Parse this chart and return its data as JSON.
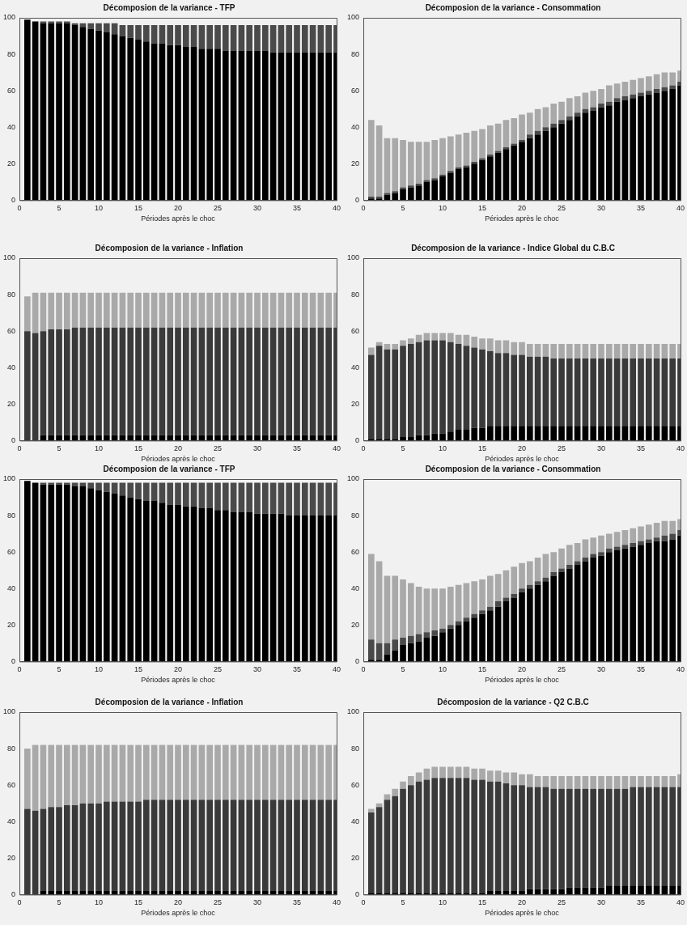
{
  "chart_data": [
    {
      "type": "bar",
      "stacked": true,
      "title": "Décomposion de la variance - TFP",
      "xlabel": "Périodes après le choc",
      "x": [
        1,
        2,
        3,
        4,
        5,
        6,
        7,
        8,
        9,
        10,
        11,
        12,
        13,
        14,
        15,
        16,
        17,
        18,
        19,
        20,
        21,
        22,
        23,
        24,
        25,
        26,
        27,
        28,
        29,
        30,
        31,
        32,
        33,
        34,
        35,
        36,
        37,
        38,
        39,
        40
      ],
      "xlim": [
        0,
        40
      ],
      "xticks": [
        0,
        5,
        10,
        15,
        20,
        25,
        30,
        35,
        40
      ],
      "ylim": [
        0,
        100
      ],
      "yticks": [
        0,
        20,
        40,
        60,
        80,
        100
      ],
      "series": [
        {
          "color": "#000000",
          "values": [
            99,
            98,
            97,
            97,
            97,
            97,
            96,
            95,
            94,
            93,
            92,
            91,
            90,
            89,
            88,
            87,
            86,
            86,
            85,
            85,
            84,
            84,
            83,
            83,
            83,
            82,
            82,
            82,
            82,
            82,
            82,
            81,
            81,
            81,
            81,
            81,
            81,
            81,
            81,
            81
          ]
        },
        {
          "color": "#4a4a4a",
          "values": [
            0,
            0,
            1,
            1,
            1,
            1,
            1,
            2,
            3,
            4,
            5,
            6,
            6,
            7,
            8,
            9,
            10,
            10,
            11,
            11,
            12,
            12,
            13,
            13,
            13,
            14,
            14,
            14,
            14,
            14,
            14,
            15,
            15,
            15,
            15,
            15,
            15,
            15,
            15,
            15
          ]
        }
      ]
    },
    {
      "type": "bar",
      "stacked": true,
      "title": "Décomposion de la variance - Consommation",
      "xlabel": "Périodes après le choc",
      "x": [
        1,
        2,
        3,
        4,
        5,
        6,
        7,
        8,
        9,
        10,
        11,
        12,
        13,
        14,
        15,
        16,
        17,
        18,
        19,
        20,
        21,
        22,
        23,
        24,
        25,
        26,
        27,
        28,
        29,
        30,
        31,
        32,
        33,
        34,
        35,
        36,
        37,
        38,
        39,
        40
      ],
      "xlim": [
        0,
        40
      ],
      "xticks": [
        0,
        5,
        10,
        15,
        20,
        25,
        30,
        35,
        40
      ],
      "ylim": [
        0,
        100
      ],
      "yticks": [
        0,
        20,
        40,
        60,
        80,
        100
      ],
      "series": [
        {
          "color": "#000000",
          "values": [
            1,
            1,
            3,
            4,
            6,
            7,
            8,
            10,
            11,
            13,
            15,
            17,
            18,
            20,
            22,
            24,
            26,
            28,
            30,
            32,
            34,
            36,
            38,
            40,
            42,
            44,
            46,
            48,
            49,
            51,
            52,
            54,
            55,
            56,
            57,
            58,
            59,
            60,
            61,
            63
          ]
        },
        {
          "color": "#4a4a4a",
          "values": [
            1,
            1,
            1,
            1,
            1,
            1,
            1,
            1,
            1,
            1,
            1,
            1,
            1,
            1,
            1,
            1,
            1,
            1,
            1,
            1,
            2,
            2,
            2,
            2,
            2,
            2,
            2,
            2,
            2,
            2,
            2,
            2,
            2,
            2,
            2,
            2,
            2,
            2,
            2,
            2
          ]
        },
        {
          "color": "#a9a9a9",
          "values": [
            42,
            39,
            30,
            29,
            26,
            24,
            23,
            21,
            21,
            20,
            19,
            18,
            18,
            17,
            16,
            16,
            15,
            15,
            14,
            14,
            12,
            12,
            11,
            11,
            10,
            10,
            9,
            9,
            9,
            8,
            9,
            8,
            8,
            8,
            8,
            8,
            8,
            8,
            7,
            6
          ]
        }
      ]
    },
    {
      "type": "bar",
      "stacked": true,
      "title": "Décomposion de la variance - Inflation",
      "xlabel": "Périodes après le choc",
      "x": [
        1,
        2,
        3,
        4,
        5,
        6,
        7,
        8,
        9,
        10,
        11,
        12,
        13,
        14,
        15,
        16,
        17,
        18,
        19,
        20,
        21,
        22,
        23,
        24,
        25,
        26,
        27,
        28,
        29,
        30,
        31,
        32,
        33,
        34,
        35,
        36,
        37,
        38,
        39,
        40
      ],
      "xlim": [
        0,
        40
      ],
      "xticks": [
        0,
        5,
        10,
        15,
        20,
        25,
        30,
        35,
        40
      ],
      "ylim": [
        0,
        100
      ],
      "yticks": [
        0,
        20,
        40,
        60,
        80,
        100
      ],
      "series": [
        {
          "color": "#000000",
          "values": [
            0,
            0,
            3,
            3,
            3,
            3,
            3,
            3,
            3,
            3,
            3,
            3,
            3,
            3,
            3,
            3,
            3,
            3,
            3,
            3,
            3,
            3,
            3,
            3,
            3,
            3,
            3,
            3,
            3,
            3,
            3,
            3,
            3,
            3,
            3,
            3,
            3,
            3,
            3,
            3
          ]
        },
        {
          "color": "#3a3a3a",
          "values": [
            60,
            59,
            57,
            58,
            58,
            58,
            59,
            59,
            59,
            59,
            59,
            59,
            59,
            59,
            59,
            59,
            59,
            59,
            59,
            59,
            59,
            59,
            59,
            59,
            59,
            59,
            59,
            59,
            59,
            59,
            59,
            59,
            59,
            59,
            59,
            59,
            59,
            59,
            59,
            59
          ]
        },
        {
          "color": "#a9a9a9",
          "values": [
            19,
            22,
            21,
            20,
            20,
            20,
            19,
            19,
            19,
            19,
            19,
            19,
            19,
            19,
            19,
            19,
            19,
            19,
            19,
            19,
            19,
            19,
            19,
            19,
            19,
            19,
            19,
            19,
            19,
            19,
            19,
            19,
            19,
            19,
            19,
            19,
            19,
            19,
            19,
            19
          ]
        }
      ]
    },
    {
      "type": "bar",
      "stacked": true,
      "title": "Décomposion de la variance - Indice Global du C.B.C",
      "xlabel": "Périodes après le choc",
      "x": [
        1,
        2,
        3,
        4,
        5,
        6,
        7,
        8,
        9,
        10,
        11,
        12,
        13,
        14,
        15,
        16,
        17,
        18,
        19,
        20,
        21,
        22,
        23,
        24,
        25,
        26,
        27,
        28,
        29,
        30,
        31,
        32,
        33,
        34,
        35,
        36,
        37,
        38,
        39,
        40
      ],
      "xlim": [
        0,
        40
      ],
      "xticks": [
        0,
        5,
        10,
        15,
        20,
        25,
        30,
        35,
        40
      ],
      "ylim": [
        0,
        100
      ],
      "yticks": [
        0,
        20,
        40,
        60,
        80,
        100
      ],
      "series": [
        {
          "color": "#000000",
          "values": [
            1,
            1,
            1,
            1,
            2,
            2,
            3,
            3,
            4,
            4,
            5,
            6,
            6,
            7,
            7,
            8,
            8,
            8,
            8,
            8,
            8,
            8,
            8,
            8,
            8,
            8,
            8,
            8,
            8,
            8,
            8,
            8,
            8,
            8,
            8,
            8,
            8,
            8,
            8,
            8
          ]
        },
        {
          "color": "#3a3a3a",
          "values": [
            46,
            51,
            49,
            49,
            50,
            51,
            51,
            52,
            51,
            51,
            49,
            47,
            46,
            44,
            43,
            41,
            40,
            40,
            39,
            39,
            38,
            38,
            38,
            37,
            37,
            37,
            37,
            37,
            37,
            37,
            37,
            37,
            37,
            37,
            37,
            37,
            37,
            37,
            37,
            37
          ]
        },
        {
          "color": "#a9a9a9",
          "values": [
            4,
            2,
            3,
            3,
            3,
            3,
            4,
            4,
            4,
            4,
            5,
            5,
            6,
            6,
            6,
            7,
            7,
            7,
            7,
            7,
            7,
            7,
            7,
            8,
            8,
            8,
            8,
            8,
            8,
            8,
            8,
            8,
            8,
            8,
            8,
            8,
            8,
            8,
            8,
            8
          ]
        }
      ]
    },
    {
      "type": "bar",
      "stacked": true,
      "title": "Décomposion de la variance - TFP",
      "xlabel": "Périodes après le choc",
      "x": [
        1,
        2,
        3,
        4,
        5,
        6,
        7,
        8,
        9,
        10,
        11,
        12,
        13,
        14,
        15,
        16,
        17,
        18,
        19,
        20,
        21,
        22,
        23,
        24,
        25,
        26,
        27,
        28,
        29,
        30,
        31,
        32,
        33,
        34,
        35,
        36,
        37,
        38,
        39,
        40
      ],
      "xlim": [
        0,
        40
      ],
      "xticks": [
        0,
        5,
        10,
        15,
        20,
        25,
        30,
        35,
        40
      ],
      "ylim": [
        0,
        100
      ],
      "yticks": [
        0,
        20,
        40,
        60,
        80,
        100
      ],
      "series": [
        {
          "color": "#000000",
          "values": [
            99,
            98,
            97,
            97,
            97,
            97,
            96,
            96,
            95,
            94,
            93,
            92,
            91,
            90,
            89,
            88,
            88,
            87,
            86,
            86,
            85,
            85,
            84,
            84,
            83,
            83,
            82,
            82,
            82,
            81,
            81,
            81,
            81,
            80,
            80,
            80,
            80,
            80,
            80,
            80
          ]
        },
        {
          "color": "#4a4a4a",
          "values": [
            0,
            0,
            1,
            1,
            1,
            1,
            2,
            2,
            3,
            4,
            5,
            6,
            7,
            8,
            9,
            10,
            10,
            11,
            12,
            12,
            13,
            13,
            14,
            14,
            15,
            15,
            16,
            16,
            16,
            17,
            17,
            17,
            17,
            18,
            18,
            18,
            18,
            18,
            18,
            18
          ]
        }
      ]
    },
    {
      "type": "bar",
      "stacked": true,
      "title": "Décomposion de la variance - Consommation",
      "xlabel": "Périodes après le choc",
      "x": [
        1,
        2,
        3,
        4,
        5,
        6,
        7,
        8,
        9,
        10,
        11,
        12,
        13,
        14,
        15,
        16,
        17,
        18,
        19,
        20,
        21,
        22,
        23,
        24,
        25,
        26,
        27,
        28,
        29,
        30,
        31,
        32,
        33,
        34,
        35,
        36,
        37,
        38,
        39,
        40
      ],
      "xlim": [
        0,
        40
      ],
      "xticks": [
        0,
        5,
        10,
        15,
        20,
        25,
        30,
        35,
        40
      ],
      "ylim": [
        0,
        100
      ],
      "yticks": [
        0,
        20,
        40,
        60,
        80,
        100
      ],
      "series": [
        {
          "color": "#000000",
          "values": [
            1,
            1,
            4,
            6,
            9,
            10,
            11,
            13,
            14,
            16,
            18,
            20,
            22,
            24,
            26,
            28,
            30,
            33,
            35,
            38,
            40,
            42,
            44,
            47,
            49,
            51,
            53,
            55,
            57,
            58,
            60,
            61,
            62,
            63,
            64,
            65,
            66,
            66,
            67,
            69
          ]
        },
        {
          "color": "#4a4a4a",
          "values": [
            11,
            9,
            6,
            6,
            4,
            4,
            4,
            3,
            3,
            2,
            2,
            2,
            2,
            2,
            2,
            2,
            3,
            2,
            2,
            2,
            2,
            2,
            2,
            2,
            2,
            2,
            2,
            2,
            2,
            2,
            2,
            2,
            2,
            2,
            2,
            2,
            2,
            3,
            3,
            3
          ]
        },
        {
          "color": "#a9a9a9",
          "values": [
            47,
            45,
            37,
            35,
            32,
            29,
            26,
            24,
            23,
            22,
            21,
            20,
            19,
            18,
            17,
            17,
            15,
            15,
            15,
            14,
            13,
            13,
            13,
            11,
            11,
            11,
            10,
            10,
            9,
            9,
            8,
            8,
            8,
            8,
            8,
            8,
            8,
            8,
            7,
            6
          ]
        }
      ]
    },
    {
      "type": "bar",
      "stacked": true,
      "title": "Décomposion de la variance - Inflation",
      "xlabel": "Périodes après le choc",
      "x": [
        1,
        2,
        3,
        4,
        5,
        6,
        7,
        8,
        9,
        10,
        11,
        12,
        13,
        14,
        15,
        16,
        17,
        18,
        19,
        20,
        21,
        22,
        23,
        24,
        25,
        26,
        27,
        28,
        29,
        30,
        31,
        32,
        33,
        34,
        35,
        36,
        37,
        38,
        39,
        40
      ],
      "xlim": [
        0,
        40
      ],
      "xticks": [
        0,
        5,
        10,
        15,
        20,
        25,
        30,
        35,
        40
      ],
      "ylim": [
        0,
        100
      ],
      "yticks": [
        0,
        20,
        40,
        60,
        80,
        100
      ],
      "series": [
        {
          "color": "#000000",
          "values": [
            0,
            0,
            2,
            2,
            2,
            2,
            2,
            2,
            2,
            2,
            2,
            2,
            2,
            2,
            2,
            2,
            2,
            2,
            2,
            2,
            2,
            2,
            2,
            2,
            2,
            2,
            2,
            2,
            2,
            2,
            2,
            2,
            2,
            2,
            2,
            2,
            2,
            2,
            2,
            2
          ]
        },
        {
          "color": "#3a3a3a",
          "values": [
            47,
            46,
            45,
            46,
            46,
            47,
            47,
            48,
            48,
            48,
            49,
            49,
            49,
            49,
            49,
            50,
            50,
            50,
            50,
            50,
            50,
            50,
            50,
            50,
            50,
            50,
            50,
            50,
            50,
            50,
            50,
            50,
            50,
            50,
            50,
            50,
            50,
            50,
            50,
            50
          ]
        },
        {
          "color": "#a9a9a9",
          "values": [
            33,
            36,
            35,
            34,
            34,
            33,
            33,
            32,
            32,
            32,
            31,
            31,
            31,
            31,
            31,
            30,
            30,
            30,
            30,
            30,
            30,
            30,
            30,
            30,
            30,
            30,
            30,
            30,
            30,
            30,
            30,
            30,
            30,
            30,
            30,
            30,
            30,
            30,
            30,
            30
          ]
        }
      ]
    },
    {
      "type": "bar",
      "stacked": true,
      "title": "Décomposion de la variance - Q2 C.B.C",
      "xlabel": "Périodes après le choc",
      "x": [
        1,
        2,
        3,
        4,
        5,
        6,
        7,
        8,
        9,
        10,
        11,
        12,
        13,
        14,
        15,
        16,
        17,
        18,
        19,
        20,
        21,
        22,
        23,
        24,
        25,
        26,
        27,
        28,
        29,
        30,
        31,
        32,
        33,
        34,
        35,
        36,
        37,
        38,
        39,
        40
      ],
      "xlim": [
        0,
        40
      ],
      "xticks": [
        0,
        5,
        10,
        15,
        20,
        25,
        30,
        35,
        40
      ],
      "ylim": [
        0,
        100
      ],
      "yticks": [
        0,
        20,
        40,
        60,
        80,
        100
      ],
      "series": [
        {
          "color": "#000000",
          "values": [
            1,
            1,
            1,
            1,
            1,
            1,
            1,
            1,
            1,
            1,
            1,
            1,
            1,
            1,
            1,
            2,
            2,
            2,
            2,
            2,
            3,
            3,
            3,
            3,
            3,
            4,
            4,
            4,
            4,
            4,
            5,
            5,
            5,
            5,
            5,
            5,
            5,
            5,
            5,
            5
          ]
        },
        {
          "color": "#3a3a3a",
          "values": [
            44,
            47,
            51,
            53,
            57,
            59,
            61,
            62,
            63,
            63,
            63,
            63,
            63,
            62,
            62,
            60,
            60,
            59,
            58,
            58,
            56,
            56,
            56,
            55,
            55,
            54,
            54,
            54,
            54,
            54,
            53,
            53,
            53,
            54,
            54,
            54,
            54,
            54,
            54,
            54
          ]
        },
        {
          "color": "#a9a9a9",
          "values": [
            2,
            2,
            3,
            4,
            4,
            5,
            5,
            6,
            6,
            6,
            6,
            6,
            6,
            6,
            6,
            6,
            6,
            6,
            7,
            6,
            7,
            6,
            6,
            7,
            7,
            7,
            7,
            7,
            7,
            7,
            7,
            7,
            7,
            6,
            6,
            6,
            6,
            6,
            6,
            7
          ]
        }
      ]
    }
  ]
}
